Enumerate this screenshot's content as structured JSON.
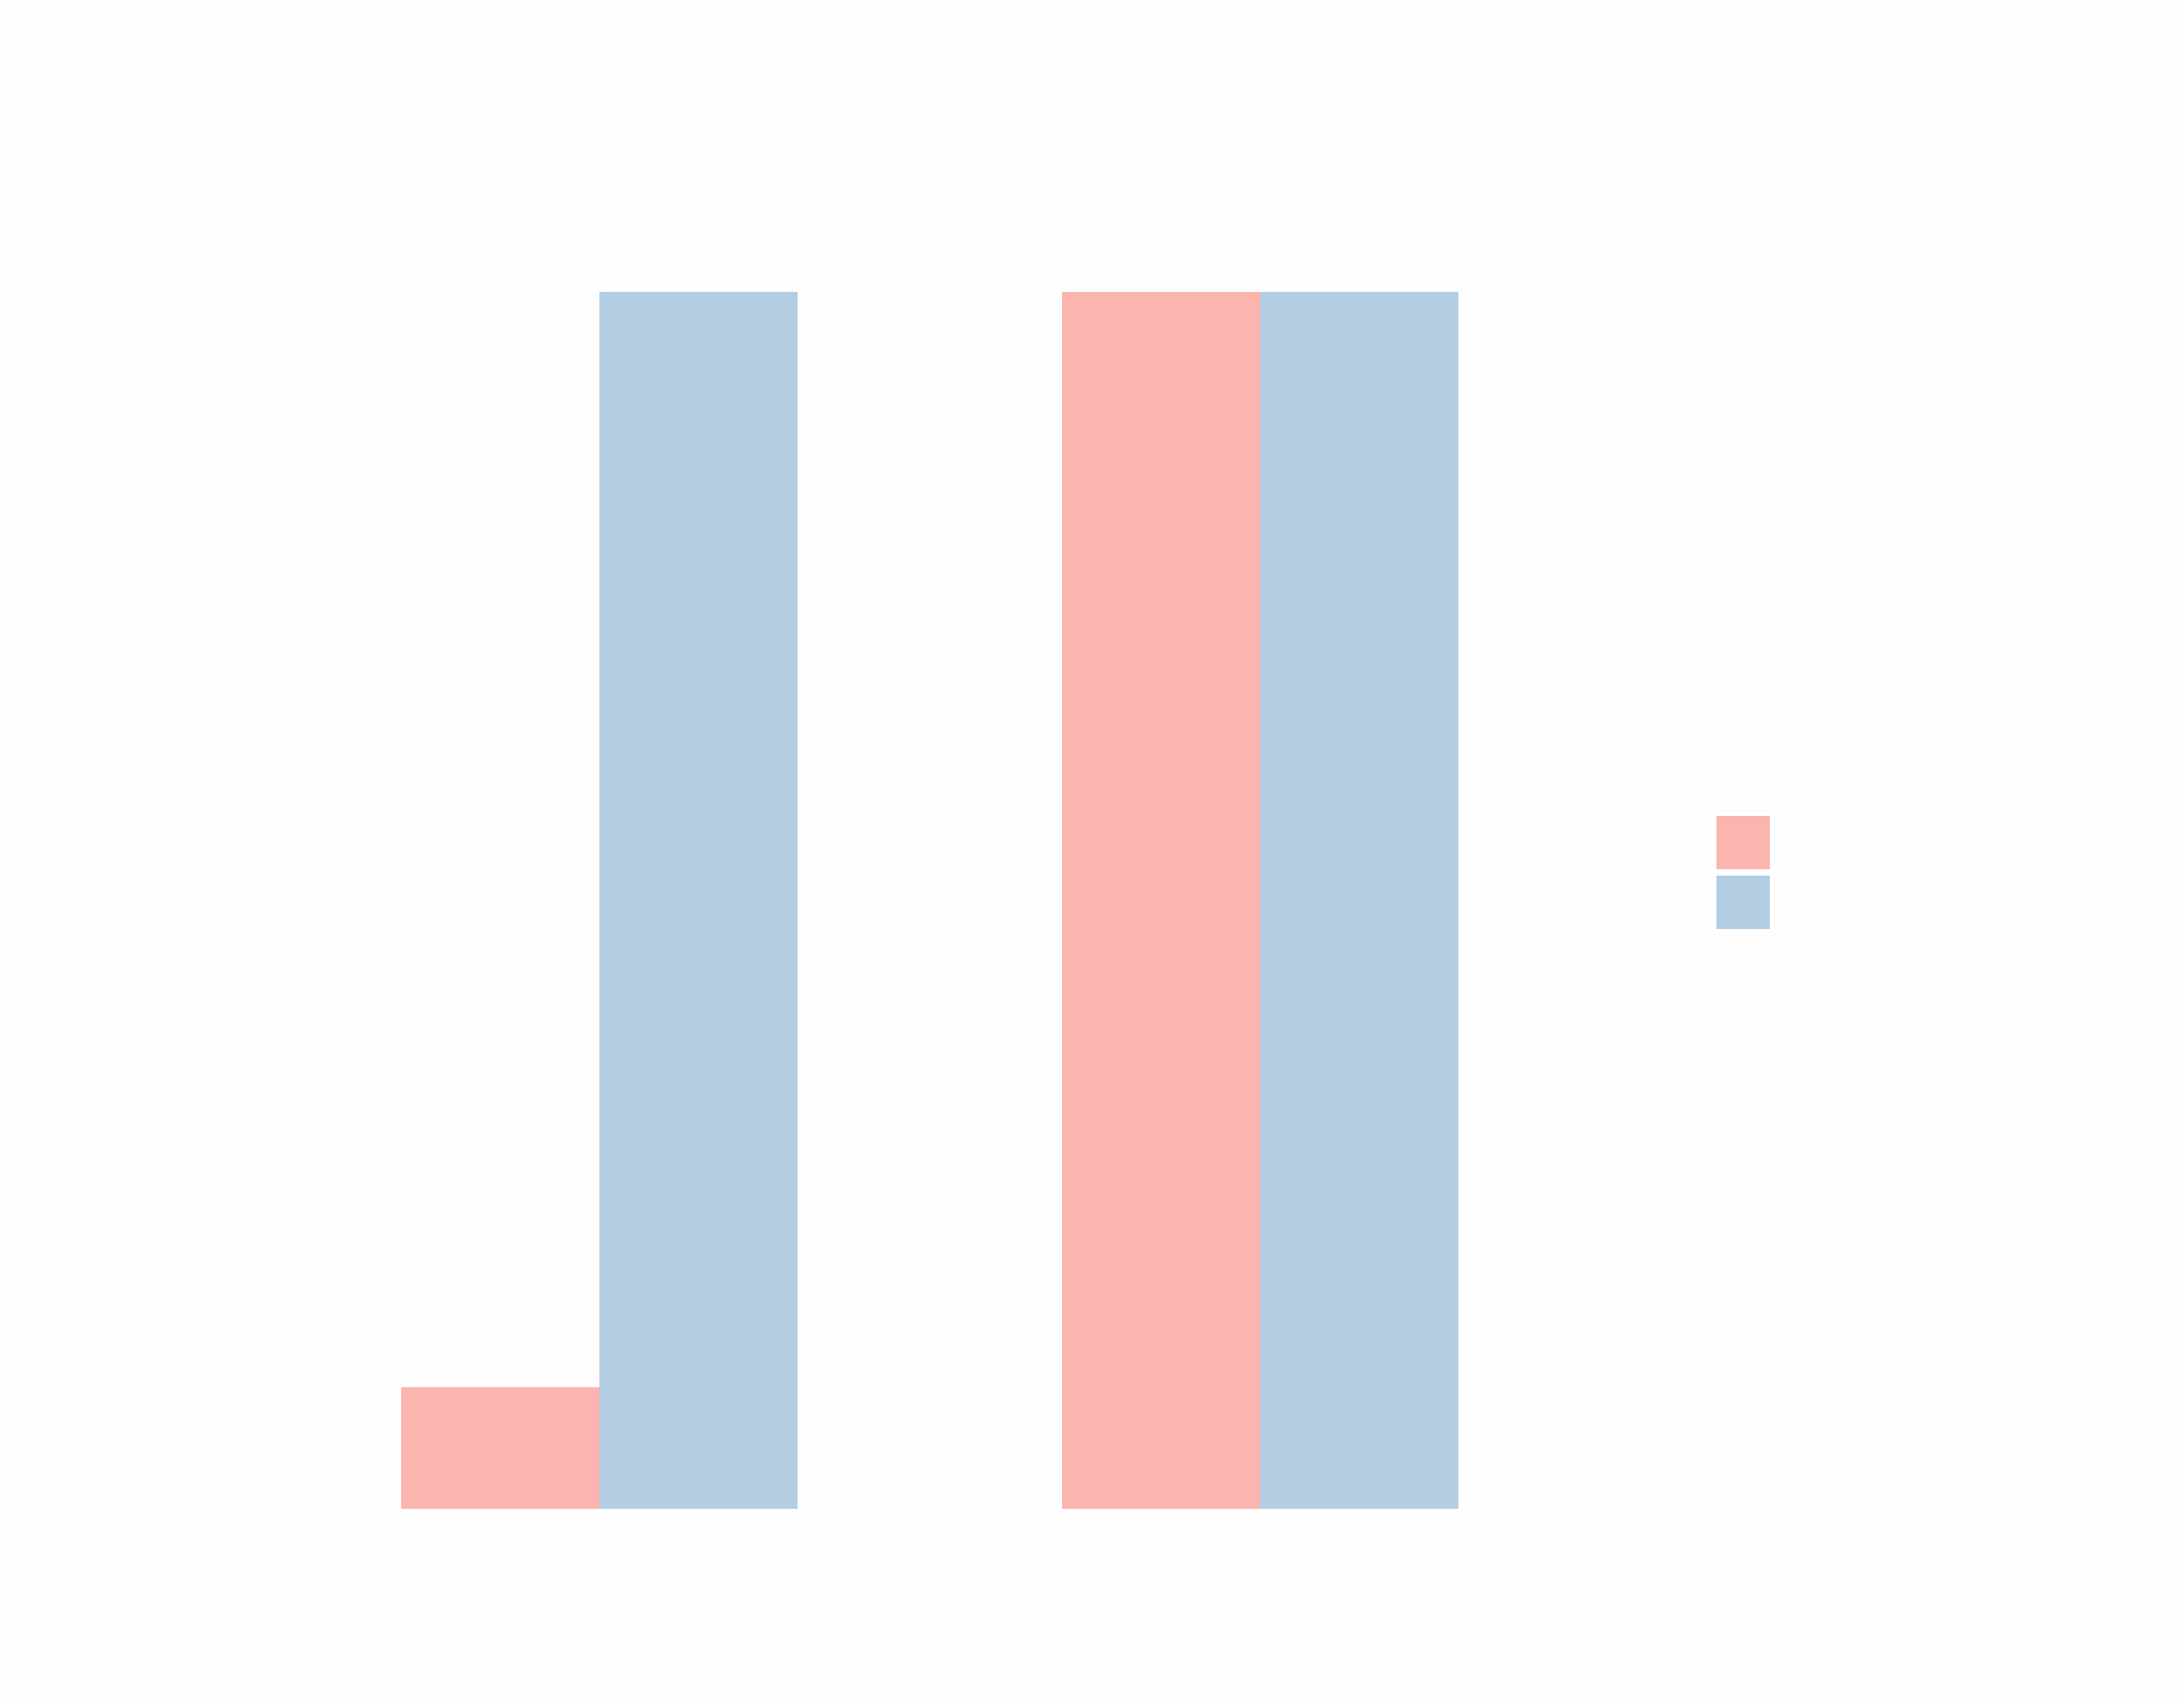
{
  "chart_data": {
    "type": "bar",
    "categories": [
      "",
      ""
    ],
    "series": [
      {
        "values": [
          0.1,
          1.0
        ],
        "color": "#fbb4ae"
      },
      {
        "values": [
          1.0,
          1.0
        ],
        "color": "#b3cde3"
      }
    ],
    "ylim": [
      0,
      1
    ],
    "grid": false,
    "axes_visible": false,
    "legend_position": "right"
  }
}
